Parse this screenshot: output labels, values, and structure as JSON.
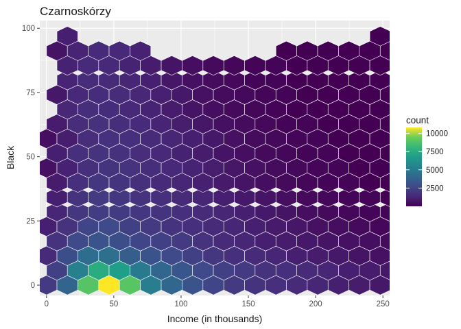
{
  "chart_data": {
    "type": "hexbin",
    "title": "Czarnoskórzy",
    "xlabel": "Income (in thousands)",
    "ylabel": "Black",
    "xlim": [
      -5,
      255
    ],
    "ylim": [
      -4,
      103
    ],
    "x_ticks": [
      0,
      50,
      100,
      150,
      200,
      250
    ],
    "x_tick_labels": [
      "0",
      "50",
      "100",
      "150",
      "200",
      "250"
    ],
    "y_ticks": [
      0,
      25,
      50,
      75,
      100
    ],
    "y_tick_labels": [
      "0",
      "25",
      "50",
      "75",
      "100"
    ],
    "grid": true,
    "background": "#ebebeb",
    "color_scale": "viridis",
    "legend": {
      "title": "count",
      "position": "right",
      "min": 1,
      "max": 10800,
      "ticks": [
        2500,
        5000,
        7500,
        10000
      ],
      "tick_labels": [
        "2500",
        "5000",
        "7500",
        "10000"
      ]
    },
    "hexbin": {
      "x_step": 15.5,
      "y_step": 5.7,
      "rows": [
        {
          "y": 0,
          "x_start": 0,
          "counts": [
            400,
            1400,
            7300,
            10800,
            7400,
            2500,
            1500,
            900,
            600,
            400,
            300,
            250,
            200,
            150,
            100,
            80,
            60,
            40,
            30,
            20,
            10,
            8,
            6,
            5,
            3,
            2,
            1,
            1,
            1,
            1,
            1,
            1,
            1,
            1,
            1,
            1,
            1,
            1,
            1
          ]
        },
        {
          "y": 5.7,
          "x_start": 7.75,
          "counts": [
            500,
            2600,
            5200,
            4200,
            2300,
            1500,
            1000,
            700,
            500,
            400,
            300,
            250,
            200,
            150,
            100,
            80,
            60,
            40,
            30,
            20,
            10,
            8,
            6,
            5,
            4,
            3,
            2,
            1,
            1,
            1,
            1,
            1,
            1,
            1
          ]
        },
        {
          "y": 11.4,
          "x_start": 0,
          "counts": [
            200,
            800,
            1700,
            1800,
            1200,
            900,
            700,
            500,
            350,
            250,
            200,
            150,
            100,
            80,
            60,
            40,
            30,
            20,
            15,
            10,
            8,
            6,
            5,
            3,
            2,
            1,
            1,
            1,
            1,
            1,
            1,
            1,
            1
          ]
        },
        {
          "y": 17.1,
          "x_start": 7.75,
          "counts": [
            300,
            700,
            900,
            800,
            600,
            500,
            400,
            300,
            200,
            150,
            100,
            80,
            60,
            40,
            30,
            20,
            15,
            10,
            5,
            3,
            1,
            1,
            1,
            1,
            1,
            1,
            1,
            1
          ]
        },
        {
          "y": 22.8,
          "x_start": 0,
          "counts": [
            100,
            300,
            600,
            700,
            500,
            400,
            300,
            250,
            200,
            150,
            100,
            70,
            50,
            30,
            20,
            10,
            5,
            3,
            1,
            1,
            1,
            1,
            1,
            1,
            1,
            1,
            1
          ]
        },
        {
          "y": 28.5,
          "x_start": 7.75,
          "counts": [
            150,
            350,
            450,
            420,
            350,
            300,
            250,
            200,
            150,
            100,
            60,
            40,
            20,
            10,
            5,
            3,
            2,
            1,
            1,
            1,
            1,
            1
          ]
        },
        {
          "y": 34.2,
          "x_start": 7.75,
          "counts": [
            100,
            300,
            400,
            380,
            300,
            250,
            200,
            150,
            100,
            60,
            40,
            20,
            10,
            5,
            3,
            2,
            1,
            1,
            1,
            1
          ]
        },
        {
          "y": 39.9,
          "x_start": 7.75,
          "counts": [
            80,
            250,
            350,
            320,
            260,
            200,
            150,
            110,
            70,
            40,
            20,
            10,
            5,
            3,
            2,
            1,
            1,
            1,
            1,
            1
          ]
        },
        {
          "y": 45.6,
          "x_start": 0,
          "counts": [
            30,
            120,
            260,
            320,
            300,
            240,
            180,
            130,
            90,
            50,
            30,
            15,
            8,
            4,
            2,
            1,
            1,
            1,
            1,
            1,
            1,
            1,
            1
          ]
        },
        {
          "y": 51.3,
          "x_start": 7.75,
          "counts": [
            100,
            250,
            300,
            270,
            220,
            170,
            120,
            80,
            40,
            20,
            10,
            5,
            3,
            2,
            1,
            1,
            1,
            1,
            1
          ]
        },
        {
          "y": 57.0,
          "x_start": 0,
          "counts": [
            20,
            90,
            220,
            280,
            250,
            200,
            150,
            100,
            60,
            30,
            15,
            8,
            4,
            2,
            1,
            1,
            1,
            1,
            1,
            1,
            1,
            1
          ]
        },
        {
          "y": 62.7,
          "x_start": 7.75,
          "counts": [
            80,
            220,
            270,
            240,
            190,
            140,
            90,
            50,
            25,
            12,
            6,
            3,
            2,
            1,
            1,
            1,
            1,
            1
          ]
        },
        {
          "y": 68.4,
          "x_start": 15.5,
          "counts": [
            160,
            240,
            230,
            180,
            130,
            80,
            40,
            20,
            10,
            5,
            3,
            1,
            1,
            1,
            1,
            1,
            1
          ]
        },
        {
          "y": 74.1,
          "x_start": 7.75,
          "counts": [
            60,
            180,
            230,
            210,
            160,
            110,
            60,
            30,
            15,
            8,
            4,
            2,
            1,
            1,
            1,
            1,
            1,
            1,
            1,
            1
          ]
        },
        {
          "y": 79.8,
          "x_start": 15.5,
          "counts": [
            140,
            210,
            200,
            150,
            100,
            50,
            25,
            12,
            6,
            3,
            2,
            1,
            1,
            1,
            1,
            1,
            1
          ]
        },
        {
          "y": 85.5,
          "x_start": 15.5,
          "counts": [
            120,
            190,
            180,
            130,
            80,
            40,
            20,
            10,
            5,
            3,
            2,
            1,
            1,
            1,
            1,
            1
          ]
        },
        {
          "y": 91.2,
          "x_start": 7.75,
          "counts": [
            40,
            140,
            190,
            170,
            120,
            70,
            35,
            15,
            8,
            4,
            2,
            1,
            1,
            1,
            1,
            1,
            1
          ]
        },
        {
          "y": 96.9,
          "x_start": 15.5,
          "counts": [
            100,
            160,
            150,
            110,
            70,
            40,
            20,
            10,
            5,
            3,
            1,
            1,
            1,
            1,
            1,
            1
          ]
        }
      ],
      "missing": [
        {
          "y": 0,
          "x": []
        },
        {
          "y": 91.2,
          "x": [
            85.25,
            100.75,
            116.25,
            131.75,
            147.25,
            162.75
          ]
        },
        {
          "y": 96.9,
          "x": [
            31,
            46.5,
            62,
            77.5,
            93,
            108.5,
            124,
            139.5,
            155,
            170.5,
            186,
            201.5,
            217,
            232.5
          ]
        }
      ]
    }
  }
}
